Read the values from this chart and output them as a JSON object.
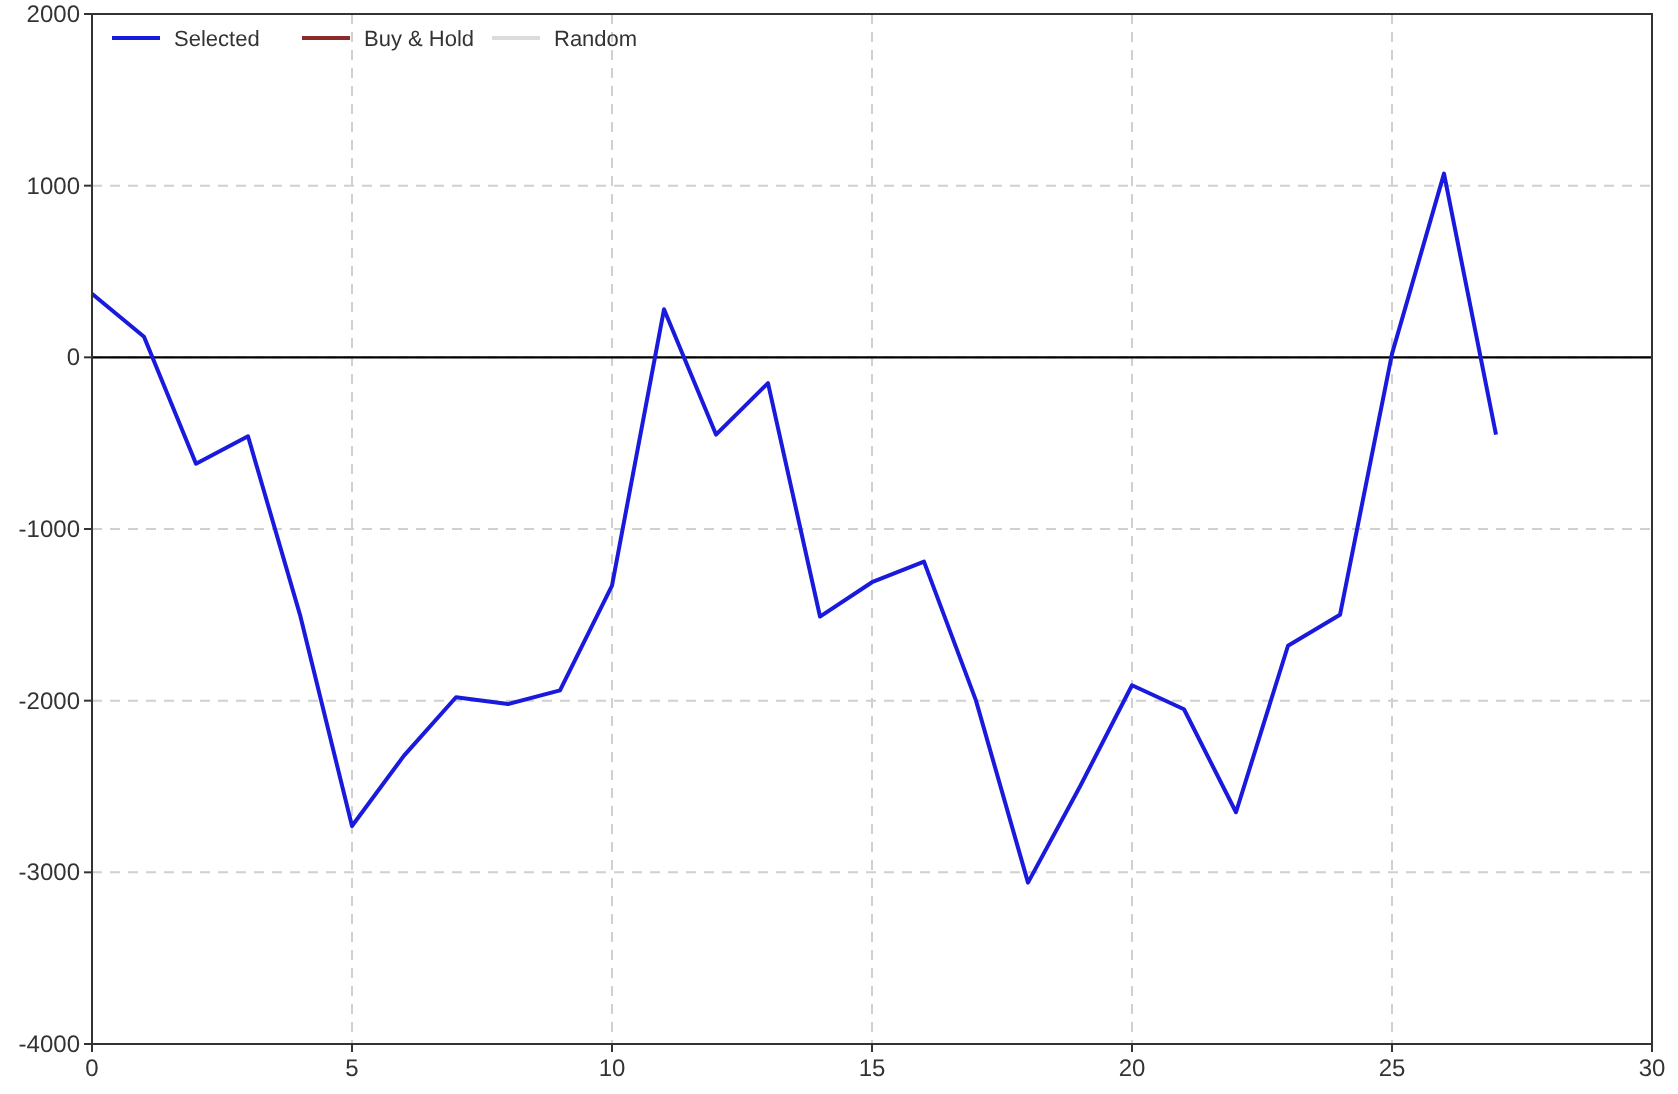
{
  "chart_data": {
    "type": "line",
    "x": [
      0,
      1,
      2,
      3,
      4,
      5,
      6,
      7,
      8,
      9,
      10,
      11,
      12,
      13,
      14,
      15,
      16,
      17,
      18,
      19,
      20,
      21,
      22,
      23,
      24,
      25,
      26,
      27
    ],
    "series": [
      {
        "name": "Selected",
        "color": "#1a1adc",
        "values": [
          370,
          120,
          -620,
          -460,
          -1500,
          -2730,
          -2320,
          -1980,
          -2020,
          -1940,
          -1330,
          280,
          -450,
          -150,
          -1510,
          -1310,
          -1190,
          -2000,
          -3060,
          -2500,
          -1910,
          -2050,
          -2650,
          -1680,
          -1500,
          20,
          1070,
          -450
        ]
      },
      {
        "name": "Buy & Hold",
        "color": "#8b2a2a",
        "values": [
          null,
          null,
          null,
          null,
          null,
          null,
          null,
          null,
          null,
          null,
          null,
          null,
          null,
          null,
          null,
          null,
          null,
          null,
          null,
          null,
          null,
          null,
          null,
          null,
          null,
          null,
          null,
          null
        ]
      },
      {
        "name": "Random",
        "color": "#dcdcdc",
        "values": [
          null,
          null,
          null,
          null,
          null,
          null,
          null,
          null,
          null,
          null,
          null,
          null,
          null,
          null,
          null,
          null,
          null,
          null,
          null,
          null,
          null,
          null,
          null,
          null,
          null,
          null,
          null,
          null
        ]
      }
    ],
    "xlim": [
      0,
      30
    ],
    "xticks": [
      0,
      5,
      10,
      15,
      20,
      25,
      30
    ],
    "ylim": [
      -4000,
      2000
    ],
    "yticks": [
      -4000,
      -3000,
      -2000,
      -1000,
      0,
      1000,
      2000
    ],
    "ref_lines": [
      {
        "axis": "y",
        "value": 0,
        "color": "#000000"
      }
    ],
    "grid": true,
    "legend": "top left",
    "line_style": "solid",
    "marker": "none"
  }
}
